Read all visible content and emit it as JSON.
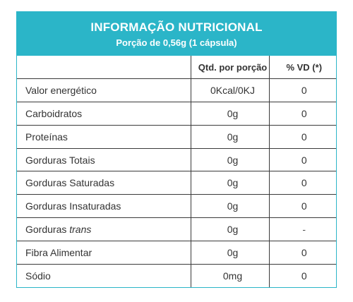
{
  "header": {
    "title": "INFORMAÇÃO NUTRICIONAL",
    "subtitle": "Porção de 0,56g (1 cápsula)"
  },
  "table": {
    "columns": [
      "",
      "Qtd. por porção",
      "% VD (*)"
    ],
    "rows": [
      {
        "name": "Valor energético",
        "qty": "0Kcal/0KJ",
        "vd": "0"
      },
      {
        "name": "Carboidratos",
        "qty": "0g",
        "vd": "0"
      },
      {
        "name": "Proteínas",
        "qty": "0g",
        "vd": "0"
      },
      {
        "name": "Gorduras Totais",
        "qty": "0g",
        "vd": "0"
      },
      {
        "name": "Gorduras Saturadas",
        "qty": "0g",
        "vd": "0"
      },
      {
        "name": "Gorduras Insaturadas",
        "qty": "0g",
        "vd": "0"
      },
      {
        "name_prefix": "Gorduras ",
        "name_italic": "trans",
        "qty": "0g",
        "vd": "-"
      },
      {
        "name": "Fibra Alimentar",
        "qty": "0g",
        "vd": "0"
      },
      {
        "name": "Sódio",
        "qty": "0mg",
        "vd": "0"
      }
    ]
  },
  "colors": {
    "accent": "#2bb5c8",
    "text": "#333333",
    "grid": "#3a3a3a"
  }
}
